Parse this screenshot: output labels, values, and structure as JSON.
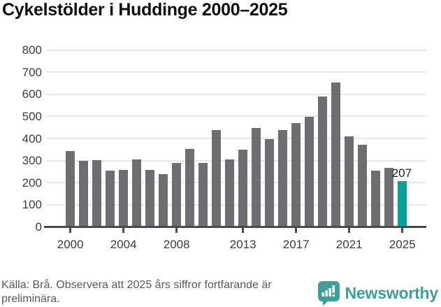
{
  "title": "Cykelstölder i Huddinge 2000–2025",
  "chart_data": {
    "type": "bar",
    "categories": [
      2000,
      2001,
      2002,
      2003,
      2004,
      2005,
      2006,
      2007,
      2008,
      2009,
      2010,
      2011,
      2012,
      2013,
      2014,
      2015,
      2016,
      2017,
      2018,
      2019,
      2020,
      2021,
      2022,
      2023,
      2024,
      2025
    ],
    "values": [
      344,
      300,
      302,
      256,
      258,
      304,
      257,
      240,
      288,
      352,
      288,
      437,
      304,
      350,
      446,
      397,
      438,
      469,
      497,
      589,
      654,
      408,
      372,
      256,
      266,
      207
    ],
    "title": "Cykelstölder i Huddinge 2000–2025",
    "xlabel": "",
    "ylabel": "",
    "ylim": [
      0,
      800
    ],
    "ytick_labels": [
      "0",
      "100",
      "200",
      "300",
      "400",
      "500",
      "600",
      "700",
      "800"
    ],
    "xtick_labels": [
      "2000",
      "2004",
      "2008",
      "2013",
      "2017",
      "2021",
      "2025"
    ],
    "xtick_years": [
      2000,
      2004,
      2008,
      2013,
      2017,
      2021,
      2025
    ],
    "grid": "horizontal",
    "legend": "none",
    "bar_color": "#6e6d72",
    "highlight_year": 2025,
    "highlight_color": "#00a29a",
    "annotation": {
      "text": "207",
      "year": 2025
    }
  },
  "footer": {
    "source_text": "Källa: Brå. Observera att 2025 års siffror fortfarande är preliminära."
  },
  "brand": {
    "name": "Newsworthy",
    "color": "#3f9e98",
    "icon": "bar-chart-speech-bubble-icon"
  }
}
